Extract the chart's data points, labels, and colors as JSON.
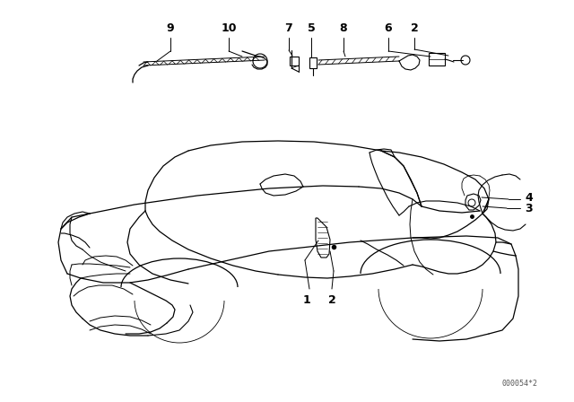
{
  "background_color": "#ffffff",
  "diagram_code": "000054*2",
  "fig_width": 6.4,
  "fig_height": 4.48,
  "dpi": 100,
  "car_color": "#000000",
  "label_fontsize": 9,
  "code_fontsize": 6
}
